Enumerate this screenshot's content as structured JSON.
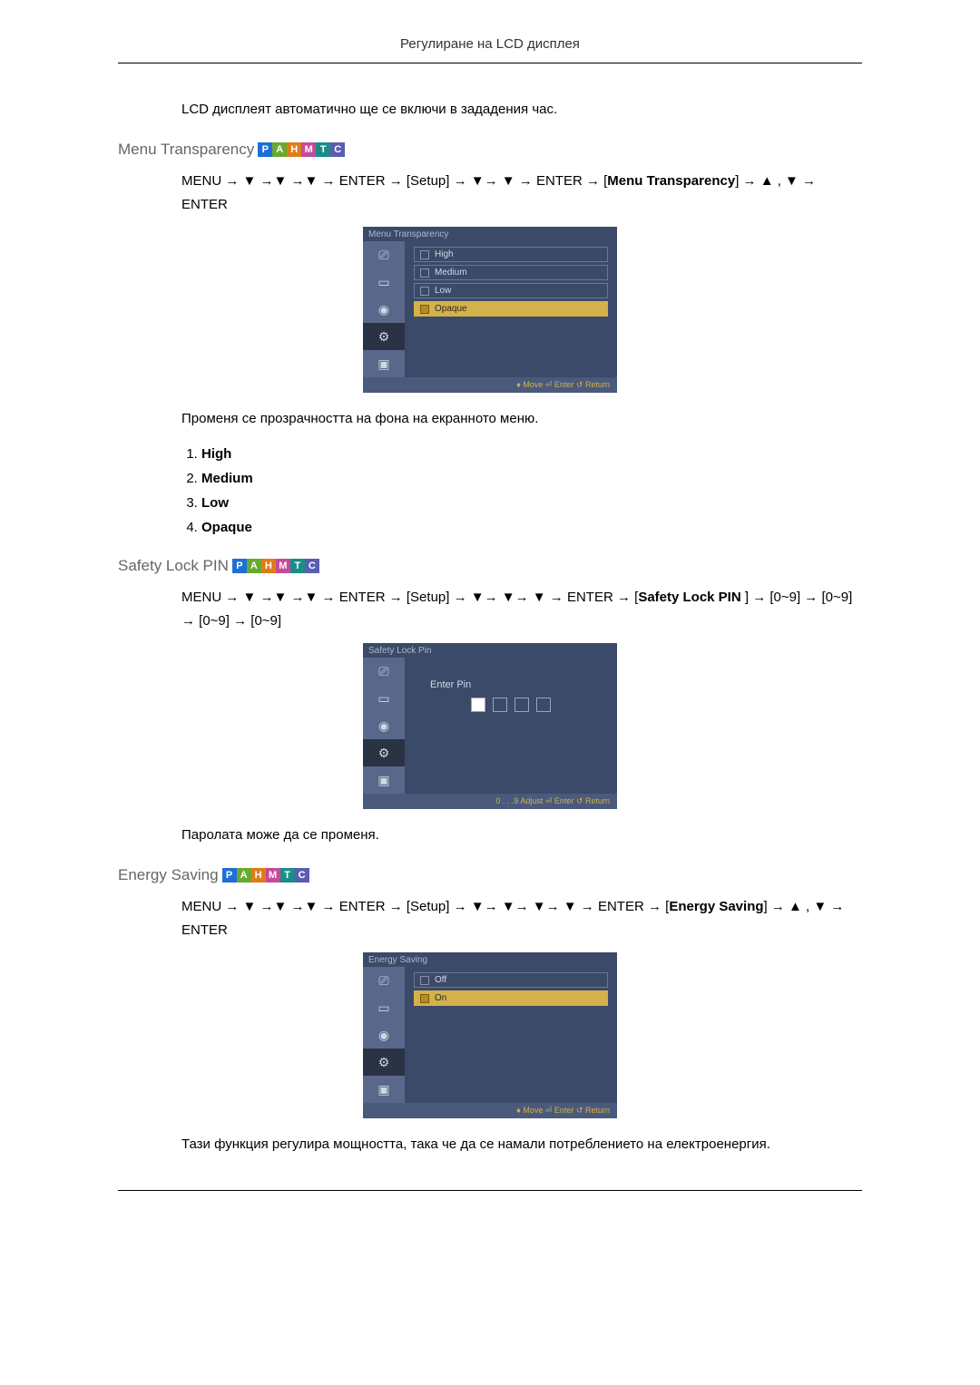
{
  "header": {
    "title": "Регулиране на LCD дисплея"
  },
  "intro_text": "LCD дисплеят автоматично ще се включи в зададения час.",
  "badges": {
    "letters": [
      "P",
      "A",
      "H",
      "M",
      "T",
      "C"
    ],
    "colors": [
      "#1e6fd6",
      "#6aa92f",
      "#e07c18",
      "#c74a9a",
      "#1a8e86",
      "#5a5eb0"
    ]
  },
  "sections": {
    "menu_transparency": {
      "heading": "Menu Transparency",
      "path_html": "MENU → ▼ →▼ →▼ → ENTER → [Setup] → ▼→ ▼ → ENTER → [<b>Menu Transparency</b>] → ▲ , ▼ → ENTER",
      "osd": {
        "title": "Menu Transparency",
        "footer": "♦ Move    ⏎ Enter    ↺ Return",
        "items": [
          {
            "label": "High",
            "selected": false
          },
          {
            "label": "Medium",
            "selected": false
          },
          {
            "label": "Low",
            "selected": false
          },
          {
            "label": "Opaque",
            "selected": true
          }
        ]
      },
      "description": "Променя се прозрачността на фона на екранното меню.",
      "options": [
        "High",
        "Medium",
        "Low",
        "Opaque"
      ]
    },
    "safety_lock": {
      "heading": "Safety Lock PIN",
      "path_html": "MENU → ▼ →▼ →▼ → ENTER → [Setup] → ▼→ ▼→ ▼ → ENTER → [<b>Safety Lock PIN </b>] → [0~9] → [0~9] → [0~9] → [0~9]",
      "osd": {
        "title": "Safety Lock Pin",
        "footer": "0 . . .9  Adjust    ⏎ Enter    ↺ Return",
        "pin_label": "Enter  Pin",
        "pin_filled": [
          true,
          false,
          false,
          false
        ]
      },
      "description": "Паролата може да се променя."
    },
    "energy_saving": {
      "heading": "Energy Saving",
      "path_html": "MENU → ▼ →▼ →▼ → ENTER → [Setup] → ▼→ ▼→ ▼→ ▼ → ENTER → [<b>Energy Saving</b>] → ▲ , ▼ → ENTER",
      "osd": {
        "title": "Energy Saving",
        "footer": "♦ Move    ⏎ Enter    ↺ Return",
        "items": [
          {
            "label": "Off",
            "selected": false
          },
          {
            "label": "On",
            "selected": true
          }
        ]
      },
      "description": "Тази функция регулира мощността, така че да се намали потреблението на електроенергия."
    }
  },
  "osd_icons": {
    "glyphs": [
      "⎚",
      "▭",
      "◉",
      "⚙",
      "▣"
    ],
    "selected_index": 3
  }
}
